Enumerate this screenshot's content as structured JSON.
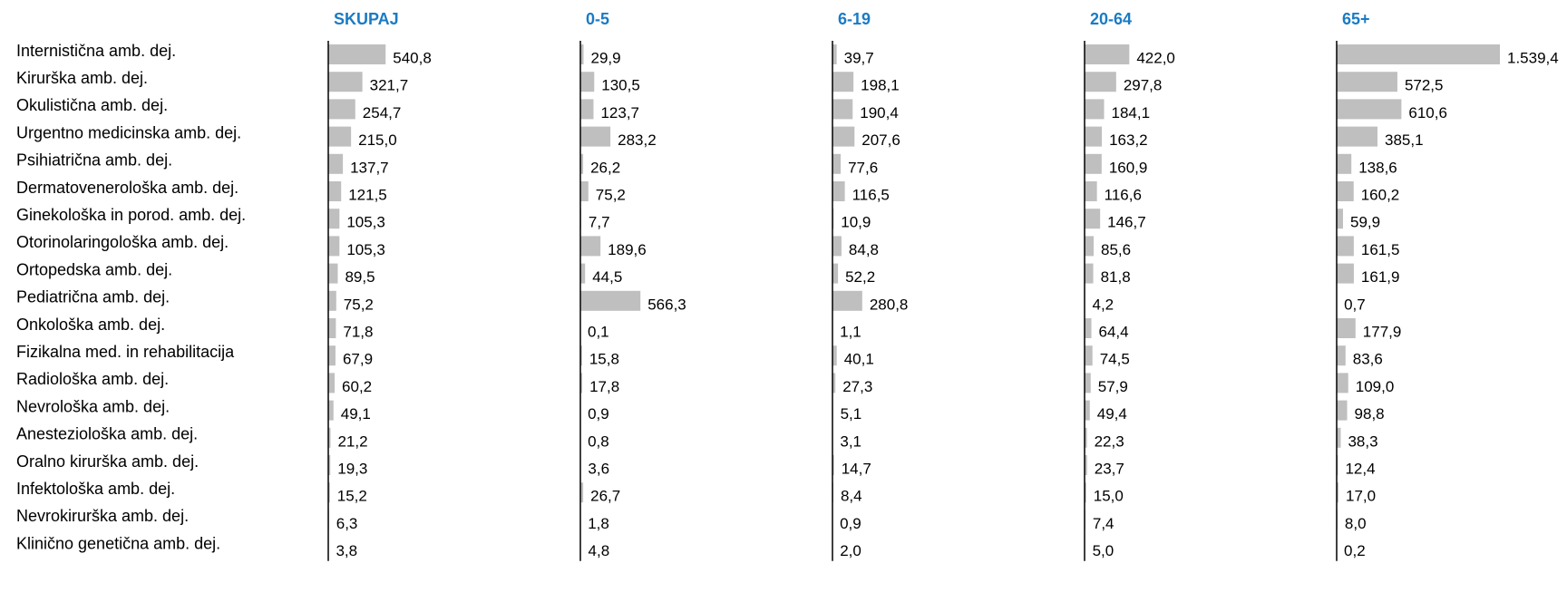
{
  "chart_data": {
    "type": "bar",
    "orientation": "horizontal",
    "color": "#bfbfbf",
    "categories": [
      "Internistična amb. dej.",
      "Kirurška amb. dej.",
      "Okulistična amb. dej.",
      "Urgentno medicinska amb. dej.",
      "Psihiatrična amb. dej.",
      "Dermatovenerološka amb. dej.",
      "Ginekološka in porod. amb. dej.",
      "Otorinolaringološka amb. dej.",
      "Ortopedska amb. dej.",
      "Pediatrična amb. dej.",
      "Onkološka amb. dej.",
      "Fizikalna med. in rehabilitacija",
      "Radiološka amb. dej.",
      "Nevrološka amb. dej.",
      "Anesteziološka amb. dej.",
      "Oralno kirurška amb. dej.",
      "Infektološka amb. dej.",
      "Nevrokirurška amb. dej.",
      "Klinično genetična amb. dej."
    ],
    "series": [
      {
        "name": "SKUPAJ",
        "values": [
          540.8,
          321.7,
          254.7,
          215.0,
          137.7,
          121.5,
          105.3,
          105.3,
          89.5,
          75.2,
          71.8,
          67.9,
          60.2,
          49.1,
          21.2,
          19.3,
          15.2,
          6.3,
          3.8
        ],
        "value_labels": [
          "540,8",
          "321,7",
          "254,7",
          "215,0",
          "137,7",
          "121,5",
          "105,3",
          "105,3",
          "89,5",
          "75,2",
          "71,8",
          "67,9",
          "60,2",
          "49,1",
          "21,2",
          "19,3",
          "15,2",
          "6,3",
          "3,8"
        ]
      },
      {
        "name": "0-5",
        "values": [
          29.9,
          130.5,
          123.7,
          283.2,
          26.2,
          75.2,
          7.7,
          189.6,
          44.5,
          566.3,
          0.1,
          15.8,
          17.8,
          0.9,
          0.8,
          3.6,
          26.7,
          1.8,
          4.8
        ],
        "value_labels": [
          "29,9",
          "130,5",
          "123,7",
          "283,2",
          "26,2",
          "75,2",
          "7,7",
          "189,6",
          "44,5",
          "566,3",
          "0,1",
          "15,8",
          "17,8",
          "0,9",
          "0,8",
          "3,6",
          "26,7",
          "1,8",
          "4,8"
        ]
      },
      {
        "name": "6-19",
        "values": [
          39.7,
          198.1,
          190.4,
          207.6,
          77.6,
          116.5,
          10.9,
          84.8,
          52.2,
          280.8,
          1.1,
          40.1,
          27.3,
          5.1,
          3.1,
          14.7,
          8.4,
          0.9,
          2.0
        ],
        "value_labels": [
          "39,7",
          "198,1",
          "190,4",
          "207,6",
          "77,6",
          "116,5",
          "10,9",
          "84,8",
          "52,2",
          "280,8",
          "1,1",
          "40,1",
          "27,3",
          "5,1",
          "3,1",
          "14,7",
          "8,4",
          "0,9",
          "2,0"
        ]
      },
      {
        "name": "20-64",
        "values": [
          422.0,
          297.8,
          184.1,
          163.2,
          160.9,
          116.6,
          146.7,
          85.6,
          81.8,
          4.2,
          64.4,
          74.5,
          57.9,
          49.4,
          22.3,
          23.7,
          15.0,
          7.4,
          5.0
        ],
        "value_labels": [
          "422,0",
          "297,8",
          "184,1",
          "163,2",
          "160,9",
          "116,6",
          "146,7",
          "85,6",
          "81,8",
          "4,2",
          "64,4",
          "74,5",
          "57,9",
          "49,4",
          "22,3",
          "23,7",
          "15,0",
          "7,4",
          "5,0"
        ]
      },
      {
        "name": "65+",
        "values": [
          1539.4,
          572.5,
          610.6,
          385.1,
          138.6,
          160.2,
          59.9,
          161.5,
          161.9,
          0.7,
          177.9,
          83.6,
          109.0,
          98.8,
          38.3,
          12.4,
          17.0,
          8.0,
          0.2
        ],
        "value_labels": [
          "1.539,4",
          "572,5",
          "610,6",
          "385,1",
          "138,6",
          "160,2",
          "59,9",
          "161,5",
          "161,9",
          "0,7",
          "177,9",
          "83,6",
          "109,0",
          "98,8",
          "38,3",
          "12,4",
          "17,0",
          "8,0",
          "0,2"
        ]
      }
    ]
  }
}
